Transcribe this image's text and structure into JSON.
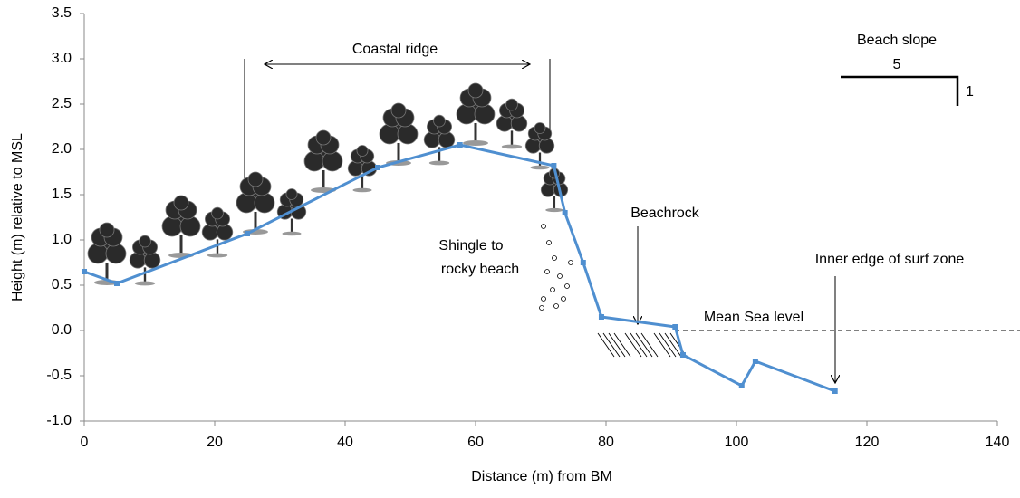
{
  "chart_data": {
    "type": "line",
    "x_label": "Distance (m) from BM",
    "y_label": "Height (m) relative to MSL",
    "series": [
      {
        "name": "Beach profile",
        "color": "#4f8fd0",
        "x": [
          0,
          5,
          25,
          45,
          57.6,
          72,
          73.7,
          76.5,
          79.3,
          90.6,
          91.8,
          100.8,
          102.9,
          115.1
        ],
        "values": [
          0.65,
          0.52,
          1.07,
          1.8,
          2.05,
          1.82,
          1.3,
          0.75,
          0.15,
          0.04,
          -0.27,
          -0.61,
          -0.34,
          -0.67
        ]
      }
    ],
    "xlim": [
      0,
      140
    ],
    "xticks": [
      0,
      20,
      40,
      60,
      80,
      100,
      120,
      140
    ],
    "ylim": [
      -1,
      3.5
    ],
    "yticks": [
      {
        "value": -1,
        "label": "-1.0"
      },
      -0.5,
      {
        "value": 0,
        "label": "0.0"
      },
      0.5,
      {
        "value": 1,
        "label": "1.0"
      },
      1.5,
      {
        "value": 2,
        "label": "2.0"
      },
      2.5,
      {
        "value": 3,
        "label": "3.0"
      },
      3.5
    ],
    "grid": false,
    "annotations": [
      "Coastal ridge",
      "Beach slope",
      "5",
      "1",
      "Beachrock",
      "Shingle to",
      "rocky beach",
      "Inner edge of surf zone",
      "Mean Sea level"
    ]
  }
}
